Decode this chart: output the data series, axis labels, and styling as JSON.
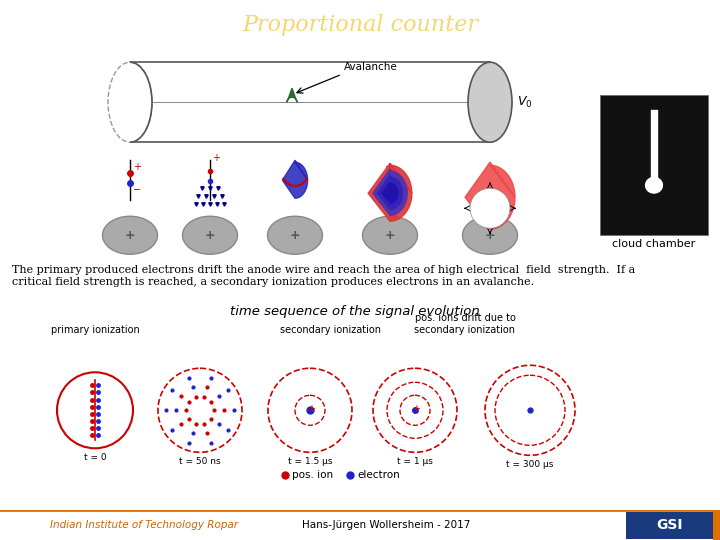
{
  "title": "Proportional counter",
  "title_color": "#f5d76e",
  "title_bg": "#1a6aee",
  "bg_color": "#ffffff",
  "body_text1": "The primary produced electrons drift the anode wire and reach the area of high electrical  field  strength.  If a",
  "body_text2": "critical field strength is reached, a secondary ionization produces electrons in an avalanche.",
  "time_seq_title": "time sequence of the signal evolution",
  "label_primary": "primary ionization",
  "label_secondary": "secondary ionization",
  "label_pos_ions": "pos. ions drift due to\nsecondary ionization",
  "legend_pos_ion": "pos. ion",
  "legend_electron": "electron",
  "footer_left": "Indian Institute of Technology Ropar",
  "footer_center": "Hans-Jürgen Wollersheim - 2017",
  "cloud_chamber_label": "cloud chamber",
  "seq_labels": [
    "t = 0",
    "t = 50 ns",
    "t = 1.5 µs",
    "t = 1 µs",
    "t = 300 µs"
  ]
}
